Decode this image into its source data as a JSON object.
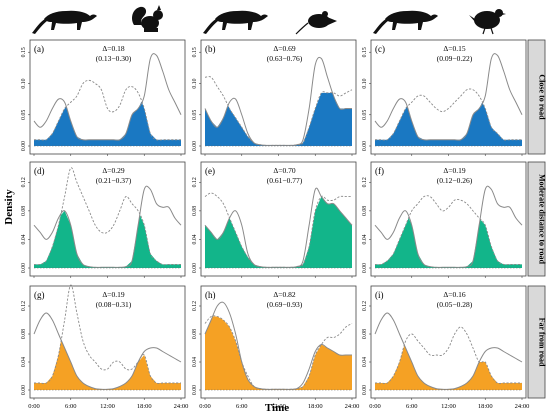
{
  "figure": {
    "ylabel": "Density",
    "xlabel": "Time",
    "x_ticks": [
      "0:00",
      "6:00",
      "12:00",
      "18:00",
      "24:00"
    ],
    "rows": [
      {
        "label": "Close to road",
        "fill": "#1a78c2",
        "y_ticks": [
          "0.00",
          "0.05",
          "0.10",
          "0.15"
        ]
      },
      {
        "label": "Moderate distance to road",
        "fill": "#12b58a",
        "y_ticks": [
          "0.00",
          "0.04",
          "0.08",
          "0.12"
        ]
      },
      {
        "label": "Far from road",
        "fill": "#f5a124",
        "y_ticks": [
          "0.00",
          "0.04",
          "0.08",
          "0.12"
        ]
      }
    ],
    "silhouettes": [
      {
        "column": 1,
        "predator": "civet-icon",
        "prey": "squirrel-icon"
      },
      {
        "column": 2,
        "predator": "civet-icon",
        "prey": "rat-icon"
      },
      {
        "column": 3,
        "predator": "civet-icon",
        "prey": "pheasant-icon"
      }
    ],
    "colors": {
      "solid_curve": "#8a8a8a",
      "dashed_curve": "#8a8a8a",
      "frame": "#444444"
    }
  },
  "chart_data": [
    {
      "panel": "(a)",
      "type": "area",
      "row": 1,
      "col": 1,
      "overlap": "Δ=0.18",
      "ci": "(0.13−0.30)",
      "ylim": [
        0,
        0.16
      ],
      "x": [
        0,
        1,
        2,
        3,
        4,
        5,
        6,
        7,
        8,
        9,
        10,
        11,
        12,
        13,
        14,
        15,
        16,
        17,
        18,
        19,
        20,
        21,
        22,
        23,
        24
      ],
      "solid": [
        0.04,
        0.03,
        0.04,
        0.06,
        0.075,
        0.07,
        0.04,
        0.015,
        0.01,
        0.01,
        0.01,
        0.01,
        0.01,
        0.01,
        0.01,
        0.02,
        0.05,
        0.06,
        0.08,
        0.14,
        0.145,
        0.12,
        0.09,
        0.07,
        0.05
      ],
      "dashed": [
        0.01,
        0.01,
        0.01,
        0.02,
        0.04,
        0.06,
        0.07,
        0.08,
        0.1,
        0.105,
        0.1,
        0.09,
        0.06,
        0.055,
        0.065,
        0.09,
        0.095,
        0.085,
        0.06,
        0.02,
        0.01,
        0.01,
        0.01,
        0.01,
        0.01
      ]
    },
    {
      "panel": "(b)",
      "type": "area",
      "row": 1,
      "col": 2,
      "overlap": "Δ=0.69",
      "ci": "(0.63−0.76)",
      "ylim": [
        0,
        0.16
      ],
      "x": [
        0,
        1,
        2,
        3,
        4,
        5,
        6,
        7,
        8,
        9,
        10,
        11,
        12,
        13,
        14,
        15,
        16,
        17,
        18,
        19,
        20,
        21,
        22,
        23,
        24
      ],
      "solid": [
        0.06,
        0.04,
        0.03,
        0.045,
        0.07,
        0.075,
        0.05,
        0.02,
        0.005,
        0.002,
        0.001,
        0.001,
        0.001,
        0.001,
        0.001,
        0.002,
        0.01,
        0.06,
        0.13,
        0.14,
        0.11,
        0.08,
        0.06,
        0.06,
        0.06
      ],
      "dashed": [
        0.11,
        0.11,
        0.095,
        0.08,
        0.06,
        0.045,
        0.03,
        0.015,
        0.005,
        0.002,
        0.001,
        0.001,
        0.001,
        0.001,
        0.001,
        0.002,
        0.005,
        0.03,
        0.06,
        0.085,
        0.085,
        0.085,
        0.08,
        0.085,
        0.09
      ]
    },
    {
      "panel": "(c)",
      "type": "area",
      "row": 1,
      "col": 3,
      "overlap": "Δ=0.15",
      "ci": "(0.09−0.22)",
      "ylim": [
        0,
        0.16
      ],
      "x": [
        0,
        1,
        2,
        3,
        4,
        5,
        6,
        7,
        8,
        9,
        10,
        11,
        12,
        13,
        14,
        15,
        16,
        17,
        18,
        19,
        20,
        21,
        22,
        23,
        24
      ],
      "solid": [
        0.04,
        0.03,
        0.04,
        0.06,
        0.075,
        0.07,
        0.04,
        0.015,
        0.01,
        0.01,
        0.01,
        0.01,
        0.01,
        0.01,
        0.01,
        0.02,
        0.05,
        0.06,
        0.08,
        0.14,
        0.145,
        0.12,
        0.09,
        0.07,
        0.05
      ],
      "dashed": [
        0.01,
        0.01,
        0.01,
        0.02,
        0.04,
        0.06,
        0.07,
        0.08,
        0.08,
        0.07,
        0.06,
        0.055,
        0.06,
        0.07,
        0.08,
        0.09,
        0.09,
        0.08,
        0.06,
        0.03,
        0.02,
        0.01,
        0.01,
        0.01,
        0.01
      ]
    },
    {
      "panel": "(d)",
      "type": "area",
      "row": 2,
      "col": 1,
      "overlap": "Δ=0.29",
      "ci": "(0.21−0.37)",
      "ylim": [
        0,
        0.14
      ],
      "x": [
        0,
        1,
        2,
        3,
        4,
        5,
        6,
        7,
        8,
        9,
        10,
        11,
        12,
        13,
        14,
        15,
        16,
        17,
        18,
        19,
        20,
        21,
        22,
        23,
        24
      ],
      "solid": [
        0.06,
        0.05,
        0.04,
        0.05,
        0.07,
        0.08,
        0.06,
        0.02,
        0.005,
        0.002,
        0.001,
        0.001,
        0.001,
        0.001,
        0.001,
        0.002,
        0.01,
        0.06,
        0.11,
        0.11,
        0.09,
        0.085,
        0.085,
        0.07,
        0.06
      ],
      "dashed": [
        0.005,
        0.005,
        0.01,
        0.03,
        0.06,
        0.1,
        0.14,
        0.12,
        0.1,
        0.08,
        0.06,
        0.05,
        0.05,
        0.06,
        0.08,
        0.1,
        0.09,
        0.08,
        0.06,
        0.02,
        0.01,
        0.005,
        0.005,
        0.005,
        0.005
      ]
    },
    {
      "panel": "(e)",
      "type": "area",
      "row": 2,
      "col": 2,
      "overlap": "Δ=0.70",
      "ci": "(0.61−0.77)",
      "ylim": [
        0,
        0.14
      ],
      "x": [
        0,
        1,
        2,
        3,
        4,
        5,
        6,
        7,
        8,
        9,
        10,
        11,
        12,
        13,
        14,
        15,
        16,
        17,
        18,
        19,
        20,
        21,
        22,
        23,
        24
      ],
      "solid": [
        0.06,
        0.05,
        0.04,
        0.05,
        0.07,
        0.08,
        0.06,
        0.02,
        0.005,
        0.002,
        0.001,
        0.001,
        0.001,
        0.001,
        0.001,
        0.002,
        0.01,
        0.06,
        0.11,
        0.1,
        0.09,
        0.09,
        0.08,
        0.07,
        0.06
      ],
      "dashed": [
        0.1,
        0.105,
        0.1,
        0.09,
        0.07,
        0.05,
        0.03,
        0.015,
        0.005,
        0.002,
        0.001,
        0.001,
        0.001,
        0.001,
        0.001,
        0.002,
        0.005,
        0.03,
        0.08,
        0.1,
        0.095,
        0.095,
        0.1,
        0.1,
        0.1
      ]
    },
    {
      "panel": "(f)",
      "type": "area",
      "row": 2,
      "col": 3,
      "overlap": "Δ=0.19",
      "ci": "(0.12−0.26)",
      "ylim": [
        0,
        0.14
      ],
      "x": [
        0,
        1,
        2,
        3,
        4,
        5,
        6,
        7,
        8,
        9,
        10,
        11,
        12,
        13,
        14,
        15,
        16,
        17,
        18,
        19,
        20,
        21,
        22,
        23,
        24
      ],
      "solid": [
        0.06,
        0.05,
        0.04,
        0.05,
        0.07,
        0.08,
        0.06,
        0.02,
        0.005,
        0.002,
        0.001,
        0.001,
        0.001,
        0.001,
        0.001,
        0.002,
        0.01,
        0.06,
        0.11,
        0.11,
        0.09,
        0.085,
        0.085,
        0.07,
        0.06
      ],
      "dashed": [
        0.005,
        0.005,
        0.01,
        0.02,
        0.04,
        0.06,
        0.08,
        0.09,
        0.1,
        0.1,
        0.09,
        0.08,
        0.085,
        0.095,
        0.095,
        0.09,
        0.08,
        0.07,
        0.06,
        0.03,
        0.01,
        0.005,
        0.005,
        0.005,
        0.005
      ]
    },
    {
      "panel": "(g)",
      "type": "area",
      "row": 3,
      "col": 1,
      "overlap": "Δ=0.19",
      "ci": "(0.08−0.31)",
      "ylim": [
        0,
        0.14
      ],
      "x": [
        0,
        1,
        2,
        3,
        4,
        5,
        6,
        7,
        8,
        9,
        10,
        11,
        12,
        13,
        14,
        15,
        16,
        17,
        18,
        19,
        20,
        21,
        22,
        23,
        24
      ],
      "solid": [
        0.08,
        0.1,
        0.11,
        0.1,
        0.08,
        0.06,
        0.04,
        0.02,
        0.01,
        0.005,
        0.002,
        0.001,
        0.001,
        0.002,
        0.005,
        0.01,
        0.02,
        0.04,
        0.055,
        0.06,
        0.06,
        0.055,
        0.05,
        0.045,
        0.04
      ],
      "dashed": [
        0.01,
        0.01,
        0.01,
        0.02,
        0.05,
        0.1,
        0.15,
        0.11,
        0.07,
        0.05,
        0.04,
        0.03,
        0.03,
        0.04,
        0.04,
        0.03,
        0.03,
        0.04,
        0.05,
        0.02,
        0.01,
        0.01,
        0.01,
        0.01,
        0.01
      ]
    },
    {
      "panel": "(h)",
      "type": "area",
      "row": 3,
      "col": 2,
      "overlap": "Δ=0.82",
      "ci": "(0.69−0.93)",
      "ylim": [
        0,
        0.14
      ],
      "x": [
        0,
        1,
        2,
        3,
        4,
        5,
        6,
        7,
        8,
        9,
        10,
        11,
        12,
        13,
        14,
        15,
        16,
        17,
        18,
        19,
        20,
        21,
        22,
        23,
        24
      ],
      "solid": [
        0.08,
        0.1,
        0.12,
        0.125,
        0.11,
        0.08,
        0.04,
        0.015,
        0.005,
        0.002,
        0.001,
        0.001,
        0.001,
        0.001,
        0.001,
        0.002,
        0.01,
        0.03,
        0.055,
        0.065,
        0.06,
        0.055,
        0.05,
        0.05,
        0.05
      ],
      "dashed": [
        0.095,
        0.105,
        0.105,
        0.1,
        0.09,
        0.07,
        0.04,
        0.02,
        0.005,
        0.002,
        0.001,
        0.001,
        0.001,
        0.001,
        0.001,
        0.002,
        0.005,
        0.02,
        0.05,
        0.065,
        0.075,
        0.075,
        0.08,
        0.09,
        0.095
      ]
    },
    {
      "panel": "(i)",
      "type": "area",
      "row": 3,
      "col": 3,
      "overlap": "Δ=0.16",
      "ci": "(0.05−0.28)",
      "ylim": [
        0,
        0.14
      ],
      "x": [
        0,
        1,
        2,
        3,
        4,
        5,
        6,
        7,
        8,
        9,
        10,
        11,
        12,
        13,
        14,
        15,
        16,
        17,
        18,
        19,
        20,
        21,
        22,
        23,
        24
      ],
      "solid": [
        0.08,
        0.1,
        0.11,
        0.1,
        0.08,
        0.06,
        0.04,
        0.02,
        0.01,
        0.005,
        0.002,
        0.001,
        0.001,
        0.002,
        0.005,
        0.01,
        0.02,
        0.04,
        0.055,
        0.06,
        0.06,
        0.055,
        0.05,
        0.045,
        0.04
      ],
      "dashed": [
        0.01,
        0.01,
        0.01,
        0.02,
        0.04,
        0.07,
        0.08,
        0.07,
        0.06,
        0.05,
        0.05,
        0.05,
        0.06,
        0.08,
        0.09,
        0.08,
        0.06,
        0.04,
        0.04,
        0.02,
        0.01,
        0.01,
        0.01,
        0.01,
        0.01
      ]
    }
  ]
}
